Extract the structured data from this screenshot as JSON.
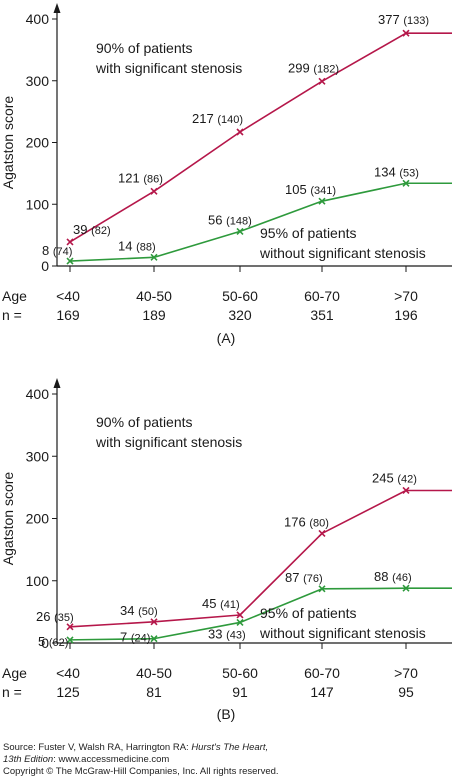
{
  "chart_data": [
    {
      "type": "line",
      "panel_label": "(A)",
      "ylabel": "Agatston score",
      "ylim": [
        0,
        400
      ],
      "yticks": [
        0,
        100,
        200,
        300,
        400
      ],
      "categories": [
        "<40",
        "40-50",
        "50-60",
        "60-70",
        ">70"
      ],
      "category_prefix": "Age",
      "n_prefix": "n =",
      "n_values": [
        "169",
        "189",
        "320",
        "351",
        "196"
      ],
      "series": [
        {
          "name": "90% of patients with significant stenosis",
          "name_lines": [
            "90% of patients",
            "with significant stenosis"
          ],
          "color": "#b5174a",
          "values": [
            39,
            121,
            217,
            299,
            377
          ],
          "value_labels": [
            "39",
            "121",
            "217",
            "299",
            "377"
          ],
          "count_labels": [
            "(82)",
            "(86)",
            "(140)",
            "(182)",
            "(133)"
          ]
        },
        {
          "name": "95% of patients without significant stenosis",
          "name_lines": [
            "95% of patients",
            "without significant stenosis"
          ],
          "color": "#2e9a3c",
          "values": [
            8,
            14,
            56,
            105,
            134
          ],
          "value_labels": [
            "8",
            "14",
            "56",
            "105",
            "134"
          ],
          "count_labels": [
            "(74)",
            "(88)",
            "(148)",
            "(341)",
            "(53)"
          ]
        }
      ]
    },
    {
      "type": "line",
      "panel_label": "(B)",
      "ylabel": "Agatston score",
      "ylim": [
        0,
        400
      ],
      "yticks": [
        0,
        100,
        200,
        300,
        400
      ],
      "categories": [
        "<40",
        "40-50",
        "50-60",
        "60-70",
        ">70"
      ],
      "category_prefix": "Age",
      "n_prefix": "n =",
      "n_values": [
        "125",
        "81",
        "91",
        "147",
        "95"
      ],
      "series": [
        {
          "name": "90% of patients with significant stenosis",
          "name_lines": [
            "90% of patients",
            "with significant stenosis"
          ],
          "color": "#b5174a",
          "values": [
            26,
            34,
            45,
            176,
            245
          ],
          "value_labels": [
            "26",
            "34",
            "45",
            "176",
            "245"
          ],
          "count_labels": [
            "(35)",
            "(50)",
            "(41)",
            "(80)",
            "(42)"
          ]
        },
        {
          "name": "95% of patients without significant stenosis",
          "name_lines": [
            "95% of patients",
            "without significant stenosis"
          ],
          "color": "#2e9a3c",
          "values": [
            5,
            7,
            33,
            87,
            88
          ],
          "value_labels": [
            "5",
            "7",
            "33",
            "87",
            "88"
          ],
          "count_labels": [
            "(62)",
            "(24)",
            "(43)",
            "(76)",
            "(46)"
          ]
        }
      ]
    }
  ],
  "source": {
    "prefix": "Source: Fuster V, Walsh RA, Harrington RA: ",
    "book": "Hurst's The Heart,",
    "edition": "13th Edition",
    "url_part": ": www.accessmedicine.com",
    "copyright": "Copyright © The McGraw-Hill Companies, Inc. All rights reserved."
  }
}
